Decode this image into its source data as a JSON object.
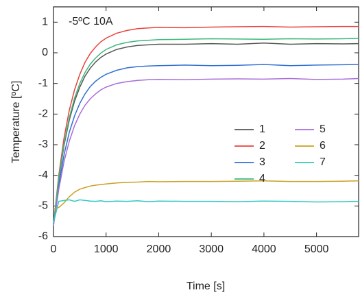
{
  "chart_data": {
    "type": "line",
    "annotation": "-5ºC 10A",
    "xlabel": "Time [s]",
    "ylabel": "Temperature [ºC]",
    "x": [
      0,
      100,
      200,
      300,
      400,
      500,
      600,
      700,
      800,
      900,
      1000,
      1200,
      1400,
      1600,
      1800,
      2000,
      2500,
      3000,
      3500,
      4000,
      4500,
      5000,
      5500,
      5800
    ],
    "xlim": [
      0,
      5800
    ],
    "xticks": [
      0,
      1000,
      2000,
      3000,
      4000,
      5000
    ],
    "ylim": [
      -6,
      1.5
    ],
    "yticks": [
      -6,
      -5,
      -4,
      -3,
      -2,
      -1,
      0,
      1
    ],
    "legend": "right",
    "series": [
      {
        "name": "1",
        "color": "#555555",
        "values": [
          -5.6,
          -4.13,
          -3.03,
          -2.2,
          -1.58,
          -1.12,
          -0.76,
          -0.5,
          -0.3,
          -0.15,
          -0.04,
          0.11,
          0.19,
          0.24,
          0.26,
          0.28,
          0.28,
          0.3,
          0.28,
          0.32,
          0.28,
          0.3,
          0.29,
          0.3
        ]
      },
      {
        "name": "2",
        "color": "#e8413c",
        "values": [
          -5.6,
          -4.0,
          -2.79,
          -1.88,
          -1.21,
          -0.7,
          -0.31,
          -0.02,
          0.19,
          0.36,
          0.48,
          0.64,
          0.73,
          0.79,
          0.81,
          0.83,
          0.82,
          0.84,
          0.85,
          0.86,
          0.84,
          0.85,
          0.86,
          0.86
        ]
      },
      {
        "name": "3",
        "color": "#2e6fd4",
        "values": [
          -5.6,
          -4.31,
          -3.34,
          -2.6,
          -2.06,
          -1.65,
          -1.34,
          -1.1,
          -0.93,
          -0.8,
          -0.7,
          -0.57,
          -0.49,
          -0.45,
          -0.43,
          -0.42,
          -0.4,
          -0.42,
          -0.41,
          -0.38,
          -0.42,
          -0.4,
          -0.39,
          -0.38
        ]
      },
      {
        "name": "4",
        "color": "#3cb878",
        "values": [
          -5.6,
          -4.09,
          -2.97,
          -2.12,
          -1.48,
          -1.0,
          -0.64,
          -0.37,
          -0.17,
          -0.01,
          0.11,
          0.26,
          0.34,
          0.39,
          0.41,
          0.43,
          0.44,
          0.46,
          0.45,
          0.44,
          0.46,
          0.45,
          0.46,
          0.47
        ]
      },
      {
        "name": "5",
        "color": "#a86cd8",
        "values": [
          -5.65,
          -4.46,
          -3.56,
          -2.89,
          -2.38,
          -2.0,
          -1.71,
          -1.5,
          -1.34,
          -1.21,
          -1.12,
          -1.0,
          -0.94,
          -0.9,
          -0.88,
          -0.87,
          -0.88,
          -0.86,
          -0.85,
          -0.86,
          -0.84,
          -0.87,
          -0.86,
          -0.84
        ]
      },
      {
        "name": "6",
        "color": "#c9a020",
        "values": [
          -5.1,
          -5.05,
          -4.9,
          -4.7,
          -4.55,
          -4.45,
          -4.4,
          -4.35,
          -4.32,
          -4.3,
          -4.28,
          -4.25,
          -4.23,
          -4.22,
          -4.2,
          -4.21,
          -4.2,
          -4.2,
          -4.19,
          -4.18,
          -4.2,
          -4.2,
          -4.19,
          -4.18
        ]
      },
      {
        "name": "7",
        "color": "#30c8c0",
        "values": [
          -5.55,
          -4.85,
          -4.82,
          -4.8,
          -4.85,
          -4.8,
          -4.82,
          -4.84,
          -4.85,
          -4.83,
          -4.86,
          -4.84,
          -4.85,
          -4.83,
          -4.86,
          -4.84,
          -4.85,
          -4.85,
          -4.86,
          -4.84,
          -4.85,
          -4.87,
          -4.86,
          -4.85
        ]
      }
    ]
  }
}
